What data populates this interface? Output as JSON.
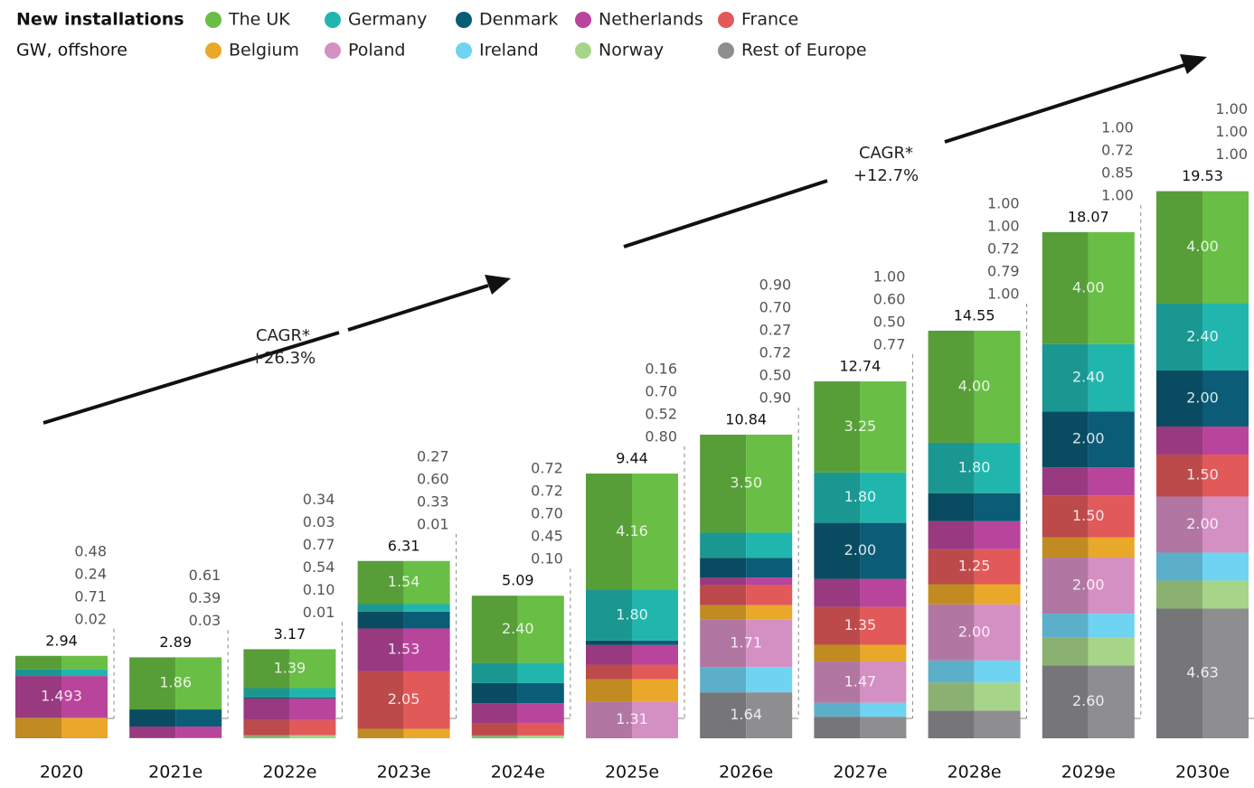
{
  "chart_data": {
    "type": "stacked-bar",
    "title": "New installations",
    "subtitle": "GW, offshore",
    "annotations": [
      "CAGR*",
      "+26.3%",
      "CAGR*",
      "+12.7%"
    ],
    "categories": [
      "2020",
      "2021e",
      "2022e",
      "2023e",
      "2024e",
      "2025e",
      "2026e",
      "2027e",
      "2028e",
      "2029e",
      "2030e"
    ],
    "totals": [
      2.94,
      2.89,
      3.17,
      6.31,
      5.09,
      9.44,
      10.84,
      12.74,
      14.55,
      18.07,
      19.53
    ],
    "series": [
      {
        "name": "Rest of Europe",
        "color": "#8e8e91",
        "values": [
          0.02,
          0.03,
          0.01,
          0.01,
          0,
          0,
          1.64,
          0.77,
          0.99,
          2.6,
          4.63
        ],
        "value_labels": [
          "0.02",
          "0.03",
          "0.01",
          "0.01",
          null,
          null,
          "1.64",
          "0.77",
          null,
          "2.60",
          "4.63"
        ]
      },
      {
        "name": "Norway",
        "color": "#a6d58a",
        "values": [
          0,
          0,
          0.1,
          0,
          0.1,
          0,
          0,
          0,
          1,
          1,
          1
        ],
        "value_labels": [
          null,
          null,
          "0.10",
          null,
          "0.10",
          null,
          null,
          null,
          "1.00",
          "1.00",
          "1.00"
        ]
      },
      {
        "name": "Ireland",
        "color": "#6fd3f2",
        "values": [
          0,
          0,
          0,
          0,
          0,
          0,
          0.9,
          0.5,
          0.79,
          0.85,
          1
        ],
        "value_labels": [
          null,
          null,
          null,
          null,
          null,
          null,
          "0.90",
          "0.50",
          "0.79",
          "0.85",
          "1.00"
        ]
      },
      {
        "name": "Poland",
        "color": "#d590c3",
        "values": [
          0,
          0,
          0,
          0,
          0,
          1.31,
          1.71,
          1.47,
          2,
          2,
          2
        ],
        "value_labels": [
          null,
          null,
          null,
          null,
          null,
          "1.31",
          "1.71",
          "1.47",
          "2.00",
          "2.00",
          "2.00"
        ]
      },
      {
        "name": "Belgium",
        "color": "#e9a82a",
        "values": [
          0.71,
          0,
          0,
          0.33,
          0,
          0.8,
          0.5,
          0.6,
          0.72,
          0.72,
          0
        ],
        "value_labels": [
          "0.71",
          null,
          null,
          "0.33",
          null,
          "0.80",
          "0.50",
          "0.60",
          "0.72",
          "0.72",
          null
        ]
      },
      {
        "name": "France",
        "color": "#e2595a",
        "values": [
          0,
          0,
          0.54,
          2.05,
          0.45,
          0.52,
          0.72,
          1.35,
          1.25,
          1.5,
          1.5
        ],
        "value_labels": [
          null,
          null,
          "0.54",
          "2.05",
          "0.45",
          "0.52",
          "0.72",
          "1.35",
          "1.25",
          "1.50",
          "1.50"
        ]
      },
      {
        "name": "Netherlands",
        "color": "#b8459b",
        "values": [
          1.493,
          0.39,
          0.77,
          1.53,
          0.7,
          0.7,
          0.27,
          1,
          1,
          1,
          1
        ],
        "value_labels": [
          "1.493",
          "0.39",
          "0.77",
          "1.53",
          "0.70",
          "0.70",
          "0.27",
          "1.00",
          "1.00",
          "1.00",
          "1.00"
        ]
      },
      {
        "name": "Denmark",
        "color": "#0b5c76",
        "values": [
          0,
          0.61,
          0.03,
          0.6,
          0.72,
          0.16,
          0.7,
          2,
          1,
          2,
          2
        ],
        "value_labels": [
          null,
          "0.61",
          "0.03",
          "0.60",
          "0.72",
          "0.16",
          "0.70",
          "2.00",
          "1.00",
          "2.00",
          "2.00"
        ]
      },
      {
        "name": "Germany",
        "color": "#20b6ae",
        "values": [
          0.24,
          0,
          0.34,
          0.27,
          0.72,
          1.8,
          0.9,
          1.8,
          1.8,
          2.4,
          2.4
        ],
        "value_labels": [
          "0.24",
          null,
          "0.34",
          "0.27",
          "0.72",
          "1.80",
          "0.90",
          "1.80",
          "1.80",
          "2.40",
          "2.40"
        ]
      },
      {
        "name": "The UK",
        "color": "#69be45",
        "values": [
          0.48,
          1.86,
          1.39,
          1.54,
          2.4,
          4.16,
          3.5,
          3.25,
          4,
          4,
          4
        ],
        "value_labels": [
          "0.48",
          "1.86",
          "1.39",
          "1.54",
          "2.40",
          "4.16",
          "3.50",
          "3.25",
          "4.00",
          "4.00",
          "4.00"
        ]
      }
    ]
  }
}
